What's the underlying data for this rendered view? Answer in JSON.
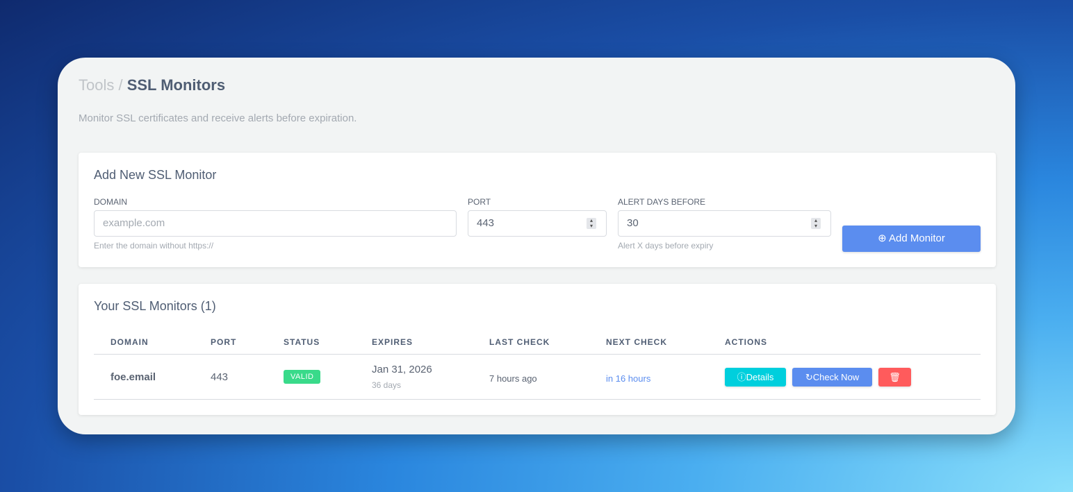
{
  "breadcrumb": {
    "parent": "Tools",
    "separator": " / ",
    "current": "SSL Monitors"
  },
  "subtitle": "Monitor SSL certificates and receive alerts before expiration.",
  "add_form": {
    "title": "Add New SSL Monitor",
    "domain": {
      "label": "DOMAIN",
      "placeholder": "example.com",
      "value": "",
      "help": "Enter the domain without https://"
    },
    "port": {
      "label": "PORT",
      "value": "443"
    },
    "alert": {
      "label": "ALERT DAYS BEFORE",
      "value": "30",
      "help": "Alert X days before expiry"
    },
    "submit_label": "Add Monitor"
  },
  "monitors": {
    "title": "Your SSL Monitors (1)",
    "columns": [
      "DOMAIN",
      "PORT",
      "STATUS",
      "EXPIRES",
      "LAST CHECK",
      "NEXT CHECK",
      "ACTIONS"
    ],
    "rows": [
      {
        "domain": "foe.email",
        "port": "443",
        "status": "VALID",
        "expires": "Jan 31, 2026",
        "expires_in": "36 days",
        "last_check": "7 hours ago",
        "next_check": "in 16 hours",
        "details_label": "Details",
        "check_label": "Check Now"
      }
    ]
  },
  "colors": {
    "primary": "#5b8def",
    "info": "#00cfdd",
    "danger": "#ff5b5c",
    "success": "#39da8a"
  }
}
